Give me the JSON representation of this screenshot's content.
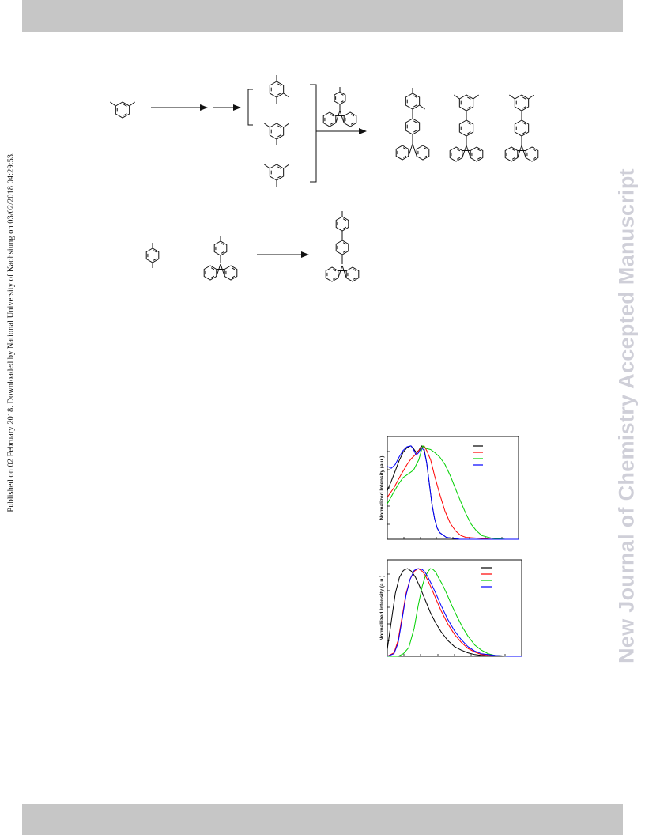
{
  "sidebar": {
    "published_note": "Published on 02 February 2018. Downloaded by National University of Kaohsiung on 03/02/2018 04:29:53.",
    "journal_watermark": "New Journal of Chemistry Accepted Manuscript"
  },
  "colors": {
    "band": "#c6c6c6",
    "watermark": "#cfcfd8",
    "spectrum_black": "#000000",
    "spectrum_red": "#ff0000",
    "spectrum_green": "#00d000",
    "spectrum_blue": "#0000ff"
  },
  "chart_data": [
    {
      "type": "line",
      "ylabel": "Normalized Intensity (a.u.)",
      "xlim": [
        0,
        100
      ],
      "ylim": [
        0,
        1.1
      ],
      "legend_position": "top-right",
      "series": [
        {
          "color": "#000000",
          "x": [
            0,
            3,
            6,
            9,
            12,
            15,
            18,
            20,
            22,
            24,
            26,
            28,
            30,
            32,
            34,
            36,
            38,
            40,
            45,
            50,
            55,
            60,
            70,
            80,
            100
          ],
          "y": [
            0.52,
            0.62,
            0.73,
            0.84,
            0.93,
            0.98,
            1.0,
            0.97,
            0.93,
            0.95,
            1.0,
            0.97,
            0.82,
            0.6,
            0.38,
            0.22,
            0.12,
            0.07,
            0.02,
            0.01,
            0,
            0,
            0,
            0,
            0
          ]
        },
        {
          "color": "#ff0000",
          "x": [
            0,
            5,
            10,
            15,
            18,
            21,
            24,
            26,
            28,
            30,
            33,
            36,
            40,
            44,
            48,
            52,
            56,
            60,
            70,
            80,
            100
          ],
          "y": [
            0.45,
            0.55,
            0.68,
            0.8,
            0.86,
            0.9,
            0.95,
            0.98,
            1.0,
            0.95,
            0.85,
            0.68,
            0.48,
            0.3,
            0.17,
            0.09,
            0.04,
            0.02,
            0.01,
            0,
            0
          ]
        },
        {
          "color": "#00d000",
          "x": [
            0,
            4,
            8,
            12,
            16,
            20,
            24,
            27,
            30,
            33,
            36,
            40,
            44,
            48,
            52,
            56,
            60,
            64,
            68,
            72,
            80,
            90,
            100
          ],
          "y": [
            0.38,
            0.48,
            0.58,
            0.66,
            0.7,
            0.74,
            0.85,
            1.0,
            0.97,
            0.96,
            0.93,
            0.88,
            0.8,
            0.68,
            0.54,
            0.4,
            0.27,
            0.16,
            0.09,
            0.04,
            0.01,
            0,
            0
          ]
        },
        {
          "color": "#0000ff",
          "x": [
            0,
            3,
            6,
            9,
            12,
            15,
            18,
            20,
            22,
            24,
            26,
            28,
            30,
            32,
            34,
            36,
            38,
            40,
            45,
            50,
            55,
            60,
            70,
            100
          ],
          "y": [
            0.78,
            0.76,
            0.8,
            0.88,
            0.95,
            0.99,
            1.0,
            0.96,
            0.9,
            0.93,
            0.98,
            0.95,
            0.82,
            0.6,
            0.38,
            0.22,
            0.12,
            0.07,
            0.02,
            0.01,
            0,
            0,
            0,
            0
          ]
        }
      ]
    },
    {
      "type": "line",
      "ylabel": "Normallized Intensity (a.u.)",
      "xlim": [
        0,
        100
      ],
      "ylim": [
        0,
        1.1
      ],
      "legend_position": "top-right",
      "series": [
        {
          "color": "#000000",
          "x": [
            0,
            3,
            6,
            9,
            12,
            15,
            18,
            21,
            24,
            28,
            32,
            36,
            40,
            45,
            50,
            55,
            60,
            65,
            70,
            80,
            90,
            100
          ],
          "y": [
            0.08,
            0.4,
            0.72,
            0.9,
            0.98,
            1.0,
            0.97,
            0.9,
            0.8,
            0.65,
            0.5,
            0.38,
            0.28,
            0.18,
            0.11,
            0.07,
            0.04,
            0.02,
            0.01,
            0,
            0,
            0
          ]
        },
        {
          "color": "#ff0000",
          "x": [
            0,
            5,
            8,
            11,
            14,
            17,
            20,
            23,
            26,
            28,
            30,
            33,
            36,
            40,
            45,
            50,
            55,
            60,
            65,
            70,
            80,
            90,
            100
          ],
          "y": [
            0,
            0.04,
            0.18,
            0.45,
            0.72,
            0.88,
            0.97,
            1.0,
            0.97,
            0.93,
            0.87,
            0.77,
            0.66,
            0.52,
            0.37,
            0.25,
            0.16,
            0.09,
            0.05,
            0.02,
            0.01,
            0,
            0
          ]
        },
        {
          "color": "#00d000",
          "x": [
            0,
            8,
            12,
            16,
            20,
            23,
            26,
            28,
            30,
            32,
            34,
            36,
            38,
            41,
            44,
            48,
            52,
            56,
            60,
            65,
            70,
            75,
            80,
            90,
            100
          ],
          "y": [
            0,
            0,
            0.03,
            0.1,
            0.32,
            0.58,
            0.8,
            0.9,
            0.96,
            1.0,
            0.99,
            0.96,
            0.9,
            0.82,
            0.72,
            0.58,
            0.45,
            0.33,
            0.23,
            0.13,
            0.07,
            0.03,
            0.01,
            0,
            0
          ]
        },
        {
          "color": "#0000ff",
          "x": [
            0,
            5,
            8,
            11,
            14,
            17,
            20,
            23,
            26,
            28,
            30,
            33,
            36,
            40,
            45,
            50,
            55,
            60,
            65,
            70,
            80,
            90,
            100
          ],
          "y": [
            0,
            0.03,
            0.15,
            0.42,
            0.7,
            0.88,
            0.98,
            1.0,
            0.99,
            0.96,
            0.91,
            0.82,
            0.72,
            0.58,
            0.42,
            0.29,
            0.19,
            0.11,
            0.06,
            0.03,
            0.01,
            0,
            0
          ]
        }
      ]
    }
  ]
}
